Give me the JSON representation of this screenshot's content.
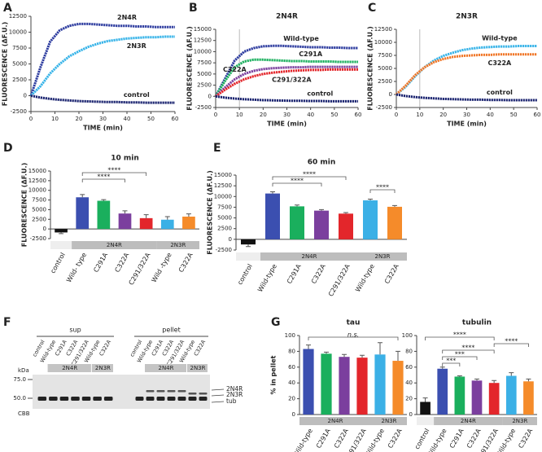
{
  "chart_data": [
    {
      "panel": "A",
      "type": "line",
      "xlabel": "TIME (min)",
      "ylabel": "FLUORESCENCE (ΔF.U.)",
      "x": [
        0,
        4,
        8,
        12,
        16,
        20,
        24,
        28,
        32,
        36,
        40,
        44,
        48,
        52,
        56,
        60
      ],
      "xlim": [
        0,
        60
      ],
      "xticks": [
        0,
        10,
        20,
        30,
        40,
        50,
        60
      ],
      "ylim": [
        -2500,
        12500
      ],
      "yticks": [
        -2500,
        0,
        2500,
        5000,
        7500,
        10000,
        12500
      ],
      "series": [
        {
          "name": "2N4R",
          "color": "#2b3a9e",
          "values": [
            0,
            4500,
            8500,
            10300,
            11000,
            11300,
            11300,
            11200,
            11100,
            11000,
            11000,
            10900,
            10900,
            10800,
            10800,
            10800
          ]
        },
        {
          "name": "2N3R",
          "color": "#36b3e8",
          "values": [
            0,
            1500,
            3500,
            5000,
            6200,
            7000,
            7700,
            8200,
            8600,
            8800,
            9000,
            9100,
            9200,
            9200,
            9300,
            9300
          ]
        },
        {
          "name": "control",
          "color": "#1b2470",
          "values": [
            0,
            -300,
            -500,
            -650,
            -750,
            -850,
            -900,
            -950,
            -1000,
            -1000,
            -1050,
            -1050,
            -1100,
            -1100,
            -1100,
            -1100
          ]
        }
      ]
    },
    {
      "panel": "B",
      "type": "line",
      "title": "2N4R",
      "xlabel": "TIME (min)",
      "ylabel": "FLUORESCENCE (ΔF.U.)",
      "x": [
        0,
        4,
        8,
        12,
        16,
        20,
        24,
        28,
        32,
        36,
        40,
        44,
        48,
        52,
        56,
        60
      ],
      "xlim": [
        0,
        60
      ],
      "xticks": [
        0,
        10,
        20,
        30,
        40,
        50,
        60
      ],
      "vline": 10,
      "ylim": [
        -2500,
        15000
      ],
      "yticks": [
        -2500,
        0,
        2500,
        5000,
        7500,
        10000,
        12500,
        15000
      ],
      "series": [
        {
          "name": "Wild-type",
          "color": "#2b3a9e",
          "values": [
            0,
            4000,
            8000,
            10000,
            10800,
            11200,
            11300,
            11300,
            11200,
            11100,
            11000,
            11000,
            10900,
            10900,
            10800,
            10800
          ]
        },
        {
          "name": "C291A",
          "color": "#1aaf5d",
          "values": [
            0,
            3500,
            6500,
            7800,
            8200,
            8200,
            8100,
            8000,
            7900,
            7900,
            7800,
            7800,
            7800,
            7700,
            7700,
            7700
          ]
        },
        {
          "name": "C322A",
          "color": "#7b3f9e",
          "values": [
            0,
            2000,
            3800,
            5000,
            5700,
            6100,
            6300,
            6400,
            6500,
            6500,
            6600,
            6600,
            6600,
            6600,
            6600,
            6600
          ]
        },
        {
          "name": "C291/322A",
          "color": "#e3262b",
          "values": [
            0,
            1500,
            2800,
            3800,
            4500,
            5000,
            5300,
            5500,
            5700,
            5800,
            5900,
            5900,
            6000,
            6000,
            6000,
            6000
          ]
        },
        {
          "name": "control",
          "color": "#1b2470",
          "values": [
            0,
            -300,
            -500,
            -650,
            -750,
            -850,
            -900,
            -950,
            -1000,
            -1000,
            -1050,
            -1050,
            -1100,
            -1100,
            -1100,
            -1100
          ]
        }
      ]
    },
    {
      "panel": "C",
      "type": "line",
      "title": "2N3R",
      "xlabel": "TIME (min)",
      "ylabel": "FLUORESCENCE (ΔF.U.)",
      "x": [
        0,
        4,
        8,
        12,
        16,
        20,
        24,
        28,
        32,
        36,
        40,
        44,
        48,
        52,
        56,
        60
      ],
      "xlim": [
        0,
        60
      ],
      "xticks": [
        0,
        10,
        20,
        30,
        40,
        50,
        60
      ],
      "vline": 10,
      "ylim": [
        -2500,
        12500
      ],
      "yticks": [
        -2500,
        0,
        2500,
        5000,
        7500,
        10000,
        12500
      ],
      "series": [
        {
          "name": "Wild-type",
          "color": "#36b3e8",
          "values": [
            0,
            1500,
            3500,
            5200,
            6500,
            7400,
            8000,
            8500,
            8800,
            9000,
            9100,
            9200,
            9200,
            9300,
            9300,
            9300
          ]
        },
        {
          "name": "C322A",
          "color": "#f0782a",
          "values": [
            0,
            1700,
            3700,
            5200,
            6200,
            6800,
            7200,
            7400,
            7500,
            7600,
            7600,
            7700,
            7700,
            7700,
            7700,
            7700
          ]
        },
        {
          "name": "control",
          "color": "#1b2470",
          "values": [
            0,
            -300,
            -500,
            -650,
            -750,
            -850,
            -900,
            -950,
            -1000,
            -1000,
            -1050,
            -1050,
            -1100,
            -1100,
            -1100,
            -1100
          ]
        }
      ]
    },
    {
      "panel": "D",
      "type": "bar",
      "title": "10 min",
      "ylabel": "FLUORESCENCE (ΔF.U.)",
      "categories": [
        "control",
        "Wild- type",
        "C291A",
        "C322A",
        "C291/322A",
        "Wild -type",
        "C322A"
      ],
      "values": [
        -900,
        8200,
        7300,
        4000,
        2800,
        2400,
        3200
      ],
      "errors": [
        300,
        700,
        300,
        700,
        900,
        800,
        700
      ],
      "colors": [
        "#111111",
        "#3b4fb0",
        "#1aaf5d",
        "#7b3f9e",
        "#e3262b",
        "#3bb0e6",
        "#f58b2a"
      ],
      "ylim": [
        -2500,
        15000
      ],
      "yticks": [
        -2500,
        0,
        2500,
        5000,
        7500,
        10000,
        12500,
        15000
      ],
      "groups": [
        {
          "name": "2N4R",
          "start": 1,
          "end": 4
        },
        {
          "name": "2N3R",
          "start": 5,
          "end": 6
        }
      ],
      "significance": [
        {
          "from": 1,
          "to": 4,
          "label": "****"
        },
        {
          "from": 1,
          "to": 3,
          "label": "****"
        }
      ]
    },
    {
      "panel": "E",
      "type": "bar",
      "title": "60 min",
      "ylabel": "FLUORESCENCE (ΔF.U.)",
      "categories": [
        "control",
        "Wild-type",
        "C291A",
        "C322A",
        "C291/322A",
        "Wild-type",
        "C322A"
      ],
      "values": [
        -1200,
        10700,
        7700,
        6700,
        6000,
        9100,
        7600
      ],
      "errors": [
        500,
        400,
        300,
        250,
        250,
        300,
        300
      ],
      "colors": [
        "#111111",
        "#3b4fb0",
        "#1aaf5d",
        "#7b3f9e",
        "#e3262b",
        "#3bb0e6",
        "#f58b2a"
      ],
      "ylim": [
        -2500,
        15000
      ],
      "yticks": [
        -2500,
        0,
        2500,
        5000,
        7500,
        10000,
        12500,
        15000
      ],
      "groups": [
        {
          "name": "2N4R",
          "start": 1,
          "end": 4
        },
        {
          "name": "2N3R",
          "start": 5,
          "end": 6
        }
      ],
      "significance": [
        {
          "from": 1,
          "to": 4,
          "label": "****"
        },
        {
          "from": 1,
          "to": 3,
          "label": "****"
        },
        {
          "from": 5,
          "to": 6,
          "label": "****"
        }
      ]
    },
    {
      "panel": "G",
      "type": "bar",
      "title": "tau",
      "ylabel": "% in pellet",
      "categories": [
        "Wild-type",
        "C291A",
        "C322A",
        "C291/322A",
        "Wild-type",
        "C322A"
      ],
      "values": [
        83,
        77,
        73,
        72,
        76,
        68
      ],
      "errors": [
        5,
        2,
        3,
        3,
        15,
        12
      ],
      "colors": [
        "#3b4fb0",
        "#1aaf5d",
        "#7b3f9e",
        "#e3262b",
        "#3bb0e6",
        "#f58b2a"
      ],
      "ylim": [
        0,
        100
      ],
      "yticks": [
        0,
        20,
        40,
        60,
        80,
        100
      ],
      "groups": [
        {
          "name": "2N4R",
          "start": 0,
          "end": 3
        },
        {
          "name": "2N3R",
          "start": 4,
          "end": 5
        }
      ],
      "significance": [
        {
          "from": 0,
          "to": 5,
          "label": "n.s."
        }
      ]
    },
    {
      "type": "bar",
      "title": "tubulin",
      "categories": [
        "control",
        "Wild-type",
        "C291A",
        "C322A",
        "C291/322A",
        "Wild-type",
        "C322A"
      ],
      "values": [
        16,
        58,
        48,
        43,
        40,
        49,
        42
      ],
      "errors": [
        5,
        2,
        1,
        2,
        3,
        4,
        3
      ],
      "colors": [
        "#111111",
        "#3b4fb0",
        "#1aaf5d",
        "#7b3f9e",
        "#e3262b",
        "#3bb0e6",
        "#f58b2a"
      ],
      "ylim": [
        0,
        100
      ],
      "yticks": [
        0,
        20,
        40,
        60,
        80,
        100
      ],
      "groups": [
        {
          "name": "2N4R",
          "start": 1,
          "end": 4
        },
        {
          "name": "2N3R",
          "start": 5,
          "end": 6
        }
      ],
      "significance": [
        {
          "from": 0,
          "to": 4,
          "label": "****"
        },
        {
          "from": 4,
          "to": 6,
          "label": "****"
        },
        {
          "from": 1,
          "to": 4,
          "label": "****"
        },
        {
          "from": 1,
          "to": 3,
          "label": "***"
        },
        {
          "from": 1,
          "to": 2,
          "label": "***"
        }
      ]
    }
  ],
  "gel": {
    "panel": "F",
    "sections": [
      {
        "label": "sup",
        "lanes": [
          "control",
          "Wild-type",
          "C291A",
          "C322A",
          "C291/322A",
          "Wild-type",
          "C322A"
        ],
        "groups": [
          "2N4R",
          "2N3R"
        ]
      },
      {
        "label": "pellet",
        "lanes": [
          "control",
          "Wild-type",
          "C291A",
          "C322A",
          "C291/322A",
          "Wild-type",
          "C322A"
        ],
        "groups": [
          "2N4R",
          "2N3R"
        ]
      }
    ],
    "marker_unit": "kDa",
    "markers": [
      "75.0",
      "50.0"
    ],
    "band_labels": [
      "2N4R",
      "2N3R",
      "tub"
    ],
    "stain": "CBB"
  }
}
